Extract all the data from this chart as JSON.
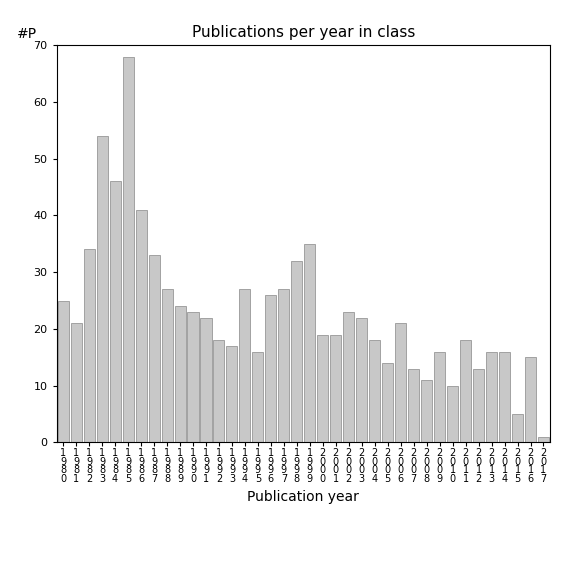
{
  "title": "Publications per year in class",
  "xlabel": "Publication year",
  "ylabel": "#P",
  "bar_color": "#c8c8c8",
  "bar_edgecolor": "#888888",
  "ylim": [
    0,
    70
  ],
  "yticks": [
    0,
    10,
    20,
    30,
    40,
    50,
    60,
    70
  ],
  "years": [
    "1980",
    "1981",
    "1982",
    "1983",
    "1984",
    "1985",
    "1986",
    "1987",
    "1988",
    "1989",
    "1990",
    "1991",
    "1992",
    "1993",
    "1994",
    "1995",
    "1996",
    "1997",
    "1998",
    "1999",
    "2000",
    "2001",
    "2002",
    "2003",
    "2004",
    "2005",
    "2006",
    "2007",
    "2008",
    "2009",
    "2010",
    "2011",
    "2012",
    "2013",
    "2014",
    "2015",
    "2016",
    "2017"
  ],
  "values": [
    25,
    21,
    34,
    54,
    46,
    68,
    41,
    33,
    27,
    24,
    23,
    22,
    18,
    17,
    27,
    16,
    26,
    27,
    32,
    35,
    19,
    19,
    23,
    22,
    18,
    14,
    21,
    13,
    11,
    16,
    10,
    18,
    13,
    16,
    16,
    5,
    15,
    1
  ],
  "tick_label_fontsize": 8,
  "axis_label_fontsize": 10,
  "title_fontsize": 11,
  "background_color": "#ffffff",
  "figsize": [
    5.67,
    5.67
  ],
  "dpi": 100
}
